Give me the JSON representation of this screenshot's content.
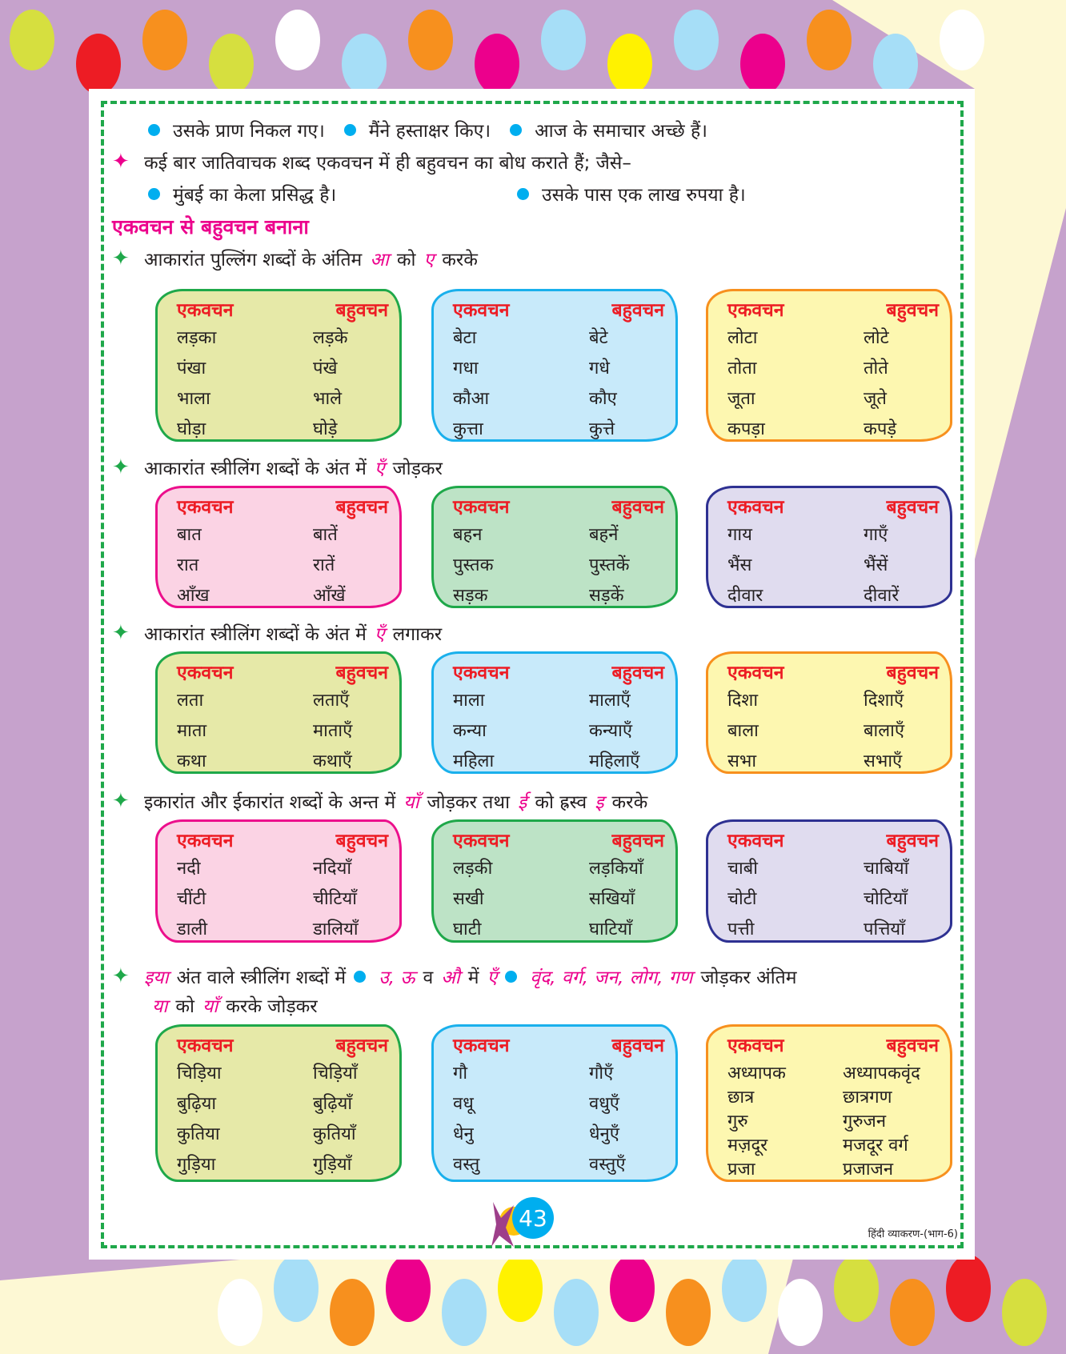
{
  "examples_line1": [
    "उसके प्राण निकल गए।",
    "मैंने हस्ताक्षर किए।",
    "आज के समाचार अच्छे हैं।"
  ],
  "note": "कई बार जातिवाचक शब्द एकवचन में ही बहुवचन का बोध कराते हैं; जैसे–",
  "examples_line3": [
    "मुंबई का केला प्रसिद्ध है।",
    "उसके पास एक लाख रुपया है।"
  ],
  "heading": "एकवचन से बहुवचन बनाना",
  "colors": {
    "accent_pink": "#ec008c",
    "header_red": "#ed1c24",
    "bullet_blue": "#00aeef",
    "border_green": "#1fa84a"
  },
  "rules": [
    {
      "parts": [
        {
          "t": "आकारांत पुल्लिंग शब्दों के अंतिम"
        },
        {
          "t": "आ",
          "c": "pink"
        },
        {
          "t": "को"
        },
        {
          "t": "ए",
          "c": "pink"
        },
        {
          "t": "करके"
        }
      ]
    },
    {
      "parts": [
        {
          "t": "आकारांत स्त्रीलिंग शब्दों के अंत में"
        },
        {
          "t": "एँ",
          "c": "pink"
        },
        {
          "t": "जोड़कर"
        }
      ]
    },
    {
      "parts": [
        {
          "t": "आकारांत स्त्रीलिंग शब्दों के अंत में"
        },
        {
          "t": "एँ",
          "c": "pink"
        },
        {
          "t": "लगाकर"
        }
      ]
    },
    {
      "parts": [
        {
          "t": "इकारांत और ईकारांत शब्दों के अन्त में"
        },
        {
          "t": "याँ",
          "c": "pink"
        },
        {
          "t": "जोड़कर तथा"
        },
        {
          "t": "ई",
          "c": "pink"
        },
        {
          "t": "को ह्रस्व"
        },
        {
          "t": "इ",
          "c": "pink"
        },
        {
          "t": "करके"
        }
      ]
    },
    {
      "parts": [
        {
          "t": "इया",
          "c": "pink"
        },
        {
          "t": "अंत वाले स्त्रीलिंग शब्दों में"
        },
        {
          "t": "",
          "c": "dot"
        },
        {
          "t": "उ, ऊ",
          "c": "pink"
        },
        {
          "t": "व"
        },
        {
          "t": "औ",
          "c": "pink"
        },
        {
          "t": "में"
        },
        {
          "t": "एँ",
          "c": "pink"
        },
        {
          "t": "",
          "c": "dot"
        },
        {
          "t": "वृंद, वर्ग, जन, लोग, गण",
          "c": "pink"
        },
        {
          "t": "जोड़कर अंतिम"
        }
      ],
      "parts2": [
        {
          "t": "या",
          "c": "pink"
        },
        {
          "t": "को"
        },
        {
          "t": "याँ",
          "c": "pink"
        },
        {
          "t": "करके जोड़कर"
        }
      ]
    }
  ],
  "header": [
    "एकवचन",
    "बहुवचन"
  ],
  "boxes": [
    [
      {
        "theme": "olive",
        "rows": [
          [
            "लड़का",
            "लड़के"
          ],
          [
            "पंखा",
            "पंखे"
          ],
          [
            "भाला",
            "भाले"
          ],
          [
            "घोड़ा",
            "घोड़े"
          ]
        ]
      },
      {
        "theme": "blue",
        "rows": [
          [
            "बेटा",
            "बेटे"
          ],
          [
            "गधा",
            "गधे"
          ],
          [
            "कौआ",
            "कौए"
          ],
          [
            "कुत्ता",
            "कुत्ते"
          ]
        ]
      },
      {
        "theme": "yellow",
        "rows": [
          [
            "लोटा",
            "लोटे"
          ],
          [
            "तोता",
            "तोते"
          ],
          [
            "जूता",
            "जूते"
          ],
          [
            "कपड़ा",
            "कपड़े"
          ]
        ]
      }
    ],
    [
      {
        "theme": "pink",
        "rows": [
          [
            "बात",
            "बातें"
          ],
          [
            "रात",
            "रातें"
          ],
          [
            "आँख",
            "आँखें"
          ]
        ]
      },
      {
        "theme": "mint",
        "rows": [
          [
            "बहन",
            "बहनें"
          ],
          [
            "पुस्तक",
            "पुस्तकें"
          ],
          [
            "सड़क",
            "सड़कें"
          ]
        ]
      },
      {
        "theme": "lavender",
        "rows": [
          [
            "गाय",
            "गाएँ"
          ],
          [
            "भैंस",
            "भैंसें"
          ],
          [
            "दीवार",
            "दीवारें"
          ]
        ]
      }
    ],
    [
      {
        "theme": "olive",
        "rows": [
          [
            "लता",
            "लताएँ"
          ],
          [
            "माता",
            "माताएँ"
          ],
          [
            "कथा",
            "कथाएँ"
          ]
        ]
      },
      {
        "theme": "blue",
        "rows": [
          [
            "माला",
            "मालाएँ"
          ],
          [
            "कन्या",
            "कन्याएँ"
          ],
          [
            "महिला",
            "महिलाएँ"
          ]
        ]
      },
      {
        "theme": "yellow",
        "rows": [
          [
            "दिशा",
            "दिशाएँ"
          ],
          [
            "बाला",
            "बालाएँ"
          ],
          [
            "सभा",
            "सभाएँ"
          ]
        ]
      }
    ],
    [
      {
        "theme": "pink",
        "rows": [
          [
            "नदी",
            "नदियाँ"
          ],
          [
            "चींटी",
            "चीटियाँ"
          ],
          [
            "डाली",
            "डालियाँ"
          ]
        ]
      },
      {
        "theme": "mint",
        "rows": [
          [
            "लड़की",
            "लड़कियाँ"
          ],
          [
            "सखी",
            "सखियाँ"
          ],
          [
            "घाटी",
            "घाटियाँ"
          ]
        ]
      },
      {
        "theme": "lavender",
        "rows": [
          [
            "चाबी",
            "चाबियाँ"
          ],
          [
            "चोटी",
            "चोटियाँ"
          ],
          [
            "पत्ती",
            "पत्तियाँ"
          ]
        ]
      }
    ],
    [
      {
        "theme": "olive",
        "rows": [
          [
            "चिड़िया",
            "चिड़ियाँ"
          ],
          [
            "बुढ़िया",
            "बुढ़ियाँ"
          ],
          [
            "कुतिया",
            "कुतियाँ"
          ],
          [
            "गुड़िया",
            "गुड़ियाँ"
          ]
        ]
      },
      {
        "theme": "blue",
        "rows": [
          [
            "गौ",
            "गौएँ"
          ],
          [
            "वधू",
            "वधुएँ"
          ],
          [
            "धेनु",
            "धेनुएँ"
          ],
          [
            "वस्तु",
            "वस्तुएँ"
          ]
        ]
      },
      {
        "theme": "yellow",
        "rows": [
          [
            "अध्यापक",
            "अध्यापकवृंद"
          ],
          [
            "छात्र",
            "छात्रगण"
          ],
          [
            "गुरु",
            "गुरुजन"
          ],
          [
            "मज़दूर",
            "मजदूर वर्ग"
          ],
          [
            "प्रजा",
            "प्रजाजन"
          ]
        ]
      }
    ]
  ],
  "page_number": "43",
  "footer": "हिंदी व्याकरण-(भाग-6)"
}
